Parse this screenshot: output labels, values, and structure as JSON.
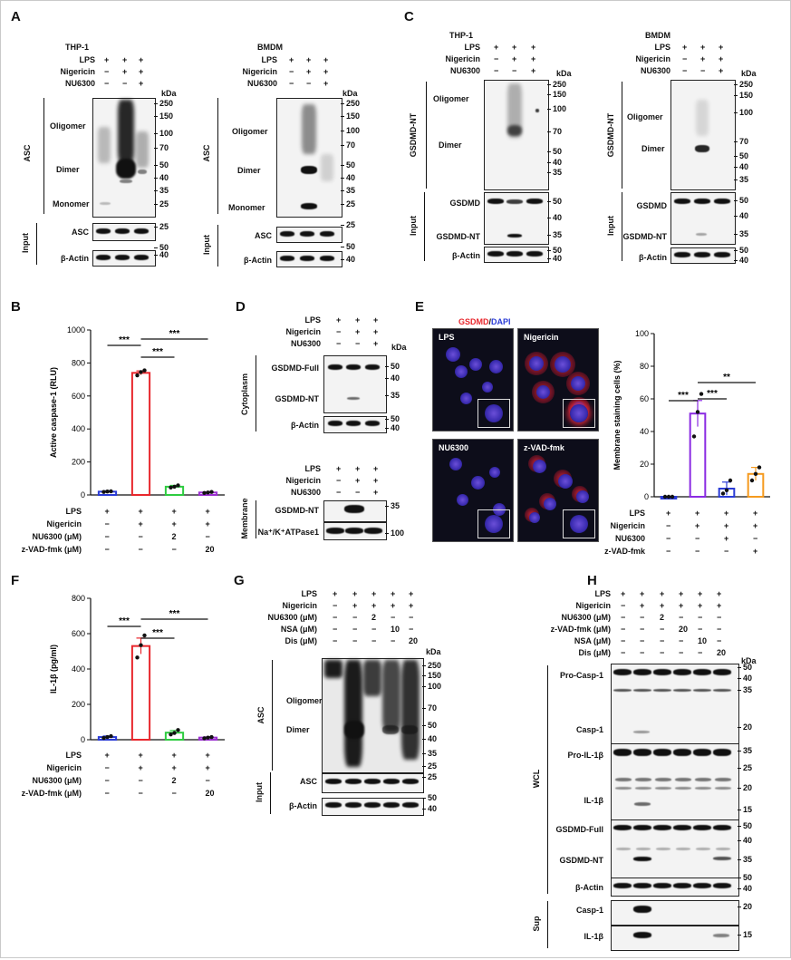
{
  "panels": {
    "A": {
      "letter": "A",
      "left": {
        "cell": "THP-1",
        "rows": [
          "LPS",
          "Nigericin",
          "NU6300"
        ],
        "signs": [
          [
            "+",
            "+",
            "+"
          ],
          [
            "−",
            "+",
            "+"
          ],
          [
            "−",
            "−",
            "+"
          ]
        ],
        "kda": [
          "250",
          "150",
          "100",
          "70",
          "50",
          "40",
          "35",
          "25"
        ],
        "side": "ASC",
        "bands": [
          "Oligomer",
          "Dimer",
          "Monomer"
        ],
        "input": "Input",
        "input_rows": [
          "ASC",
          "β-Actin"
        ],
        "input_kda": [
          "25",
          "50",
          "40"
        ]
      },
      "right": {
        "cell": "BMDM",
        "rows": [
          "LPS",
          "Nigericin",
          "NU6300"
        ],
        "signs": [
          [
            "+",
            "+",
            "+"
          ],
          [
            "−",
            "+",
            "+"
          ],
          [
            "−",
            "−",
            "+"
          ]
        ],
        "kda": [
          "250",
          "150",
          "100",
          "70",
          "50",
          "40",
          "35",
          "25"
        ],
        "side": "ASC",
        "bands": [
          "Oligomer",
          "Dimer",
          "Monomer"
        ],
        "input": "Input",
        "input_rows": [
          "ASC",
          "β-Actin"
        ],
        "input_kda": [
          "25",
          "50",
          "40"
        ]
      },
      "kda_label": "kDa"
    },
    "B": {
      "letter": "B",
      "xrows": [
        "LPS",
        "Nigericin",
        "NU6300 (μM)",
        "z-VAD-fmk (μM)"
      ],
      "xsigns": [
        [
          "+",
          "+",
          "+",
          "+"
        ],
        [
          "−",
          "+",
          "+",
          "+"
        ],
        [
          "−",
          "−",
          "2",
          "−"
        ],
        [
          "−",
          "−",
          "−",
          "20"
        ]
      ],
      "sig": [
        "***",
        "***",
        "***"
      ]
    },
    "C": {
      "letter": "C",
      "left": {
        "cell": "THP-1",
        "rows": [
          "LPS",
          "Nigericin",
          "NU6300"
        ],
        "signs": [
          [
            "+",
            "+",
            "+"
          ],
          [
            "−",
            "+",
            "+"
          ],
          [
            "−",
            "−",
            "+"
          ]
        ],
        "kda": [
          "250",
          "150",
          "100",
          "70",
          "50",
          "40",
          "35"
        ],
        "side": "GSDMD-NT",
        "bands": [
          "Oligomer",
          "Dimer"
        ],
        "input": "Input",
        "input_rows": [
          "GSDMD",
          "GSDMD-NT",
          "β-Actin"
        ],
        "input_kda": [
          "50",
          "40",
          "35",
          "50",
          "40"
        ]
      },
      "right": {
        "cell": "BMDM",
        "rows": [
          "LPS",
          "Nigericin",
          "NU6300"
        ],
        "signs": [
          [
            "+",
            "+",
            "+"
          ],
          [
            "−",
            "+",
            "+"
          ],
          [
            "−",
            "−",
            "+"
          ]
        ],
        "kda": [
          "250",
          "150",
          "100",
          "70",
          "50",
          "40",
          "35"
        ],
        "side": "GSDMD-NT",
        "bands": [
          "Oligomer",
          "Dimer"
        ],
        "input": "Input",
        "input_rows": [
          "GSDMD",
          "GSDMD-NT",
          "β-Actin"
        ],
        "input_kda": [
          "50",
          "40",
          "35",
          "50",
          "40"
        ]
      },
      "kda_label": "kDa"
    },
    "D": {
      "letter": "D",
      "rows": [
        "LPS",
        "Nigericin",
        "NU6300"
      ],
      "signs": [
        [
          "+",
          "+",
          "+"
        ],
        [
          "−",
          "+",
          "+"
        ],
        [
          "−",
          "−",
          "+"
        ]
      ],
      "cyto": "Cytoplasm",
      "cyto_rows": [
        "GSDMD-Full",
        "GSDMD-NT",
        "β-Actin"
      ],
      "cyto_kda": [
        "50",
        "40",
        "35",
        "50",
        "40"
      ],
      "memb": "Membrane",
      "memb_rows": [
        "GSDMD-NT",
        "Na⁺/K⁺ATPase1"
      ],
      "memb_kda": [
        "35",
        "100"
      ],
      "kda_label": "kDa"
    },
    "E": {
      "letter": "E",
      "title_red": "GSDMD",
      "title_sep": "/",
      "title_blue": "DAPI",
      "images": [
        "LPS",
        "Nigericin",
        "NU6300",
        "z-VAD-fmk"
      ],
      "xrows": [
        "LPS",
        "Nigericin",
        "NU6300",
        "z-VAD-fmk"
      ],
      "xsigns": [
        [
          "+",
          "+",
          "+",
          "+"
        ],
        [
          "−",
          "+",
          "+",
          "+"
        ],
        [
          "−",
          "−",
          "+",
          "−"
        ],
        [
          "−",
          "−",
          "−",
          "+"
        ]
      ],
      "sig": [
        "***",
        "***",
        "**"
      ]
    },
    "F": {
      "letter": "F",
      "xrows": [
        "LPS",
        "Nigericin",
        "NU6300 (μM)",
        "z-VAD-fmk (μM)"
      ],
      "xsigns": [
        [
          "+",
          "+",
          "+",
          "+"
        ],
        [
          "−",
          "+",
          "+",
          "+"
        ],
        [
          "−",
          "−",
          "2",
          "−"
        ],
        [
          "−",
          "−",
          "−",
          "20"
        ]
      ],
      "sig": [
        "***",
        "***",
        "***"
      ]
    },
    "G": {
      "letter": "G",
      "rows": [
        "LPS",
        "Nigericin",
        "NU6300 (μM)",
        "NSA (μM)",
        "Dis (μM)"
      ],
      "signs": [
        [
          "+",
          "+",
          "+",
          "+",
          "+"
        ],
        [
          "−",
          "+",
          "+",
          "+",
          "+"
        ],
        [
          "−",
          "−",
          "2",
          "−",
          "−"
        ],
        [
          "−",
          "−",
          "−",
          "10",
          "−"
        ],
        [
          "−",
          "−",
          "−",
          "−",
          "20"
        ]
      ],
      "kda": [
        "250",
        "150",
        "100",
        "70",
        "50",
        "40",
        "35",
        "25"
      ],
      "side": "ASC",
      "bands": [
        "Oligomer",
        "Dimer"
      ],
      "input": "Input",
      "input_rows": [
        "ASC",
        "β-Actin"
      ],
      "input_kda": [
        "25",
        "50",
        "40"
      ],
      "kda_label": "kDa"
    },
    "H": {
      "letter": "H",
      "rows": [
        "LPS",
        "Nigericin",
        "NU6300 (μM)",
        "z-VAD-fmk (μM)",
        "NSA (μM)",
        "Dis (μM)"
      ],
      "signs": [
        [
          "+",
          "+",
          "+",
          "+",
          "+",
          "+"
        ],
        [
          "−",
          "+",
          "+",
          "+",
          "+",
          "+"
        ],
        [
          "−",
          "−",
          "2",
          "−",
          "−",
          "−"
        ],
        [
          "−",
          "−",
          "−",
          "20",
          "−",
          "−"
        ],
        [
          "−",
          "−",
          "−",
          "−",
          "10",
          "−"
        ],
        [
          "−",
          "−",
          "−",
          "−",
          "−",
          "20"
        ]
      ],
      "wcl": "WCL",
      "wcl_rows": [
        "Pro-Casp-1",
        "Casp-1",
        "Pro-IL-1β",
        "IL-1β",
        "GSDMD-Full",
        "GSDMD-NT",
        "β-Actin"
      ],
      "wcl_kda": [
        "50",
        "40",
        "35",
        "20",
        "35",
        "25",
        "20",
        "15",
        "50",
        "40",
        "35",
        "50",
        "40"
      ],
      "sup": "Sup",
      "sup_rows": [
        "Casp-1",
        "IL-1β"
      ],
      "sup_kda": [
        "20",
        "15"
      ],
      "kda_label": "kDa"
    }
  },
  "chart_data": [
    {
      "type": "bar",
      "panel": "B",
      "title": "",
      "ylabel": "Active caspase-1 (RLU)",
      "xlabel": "",
      "ylim": [
        0,
        1000
      ],
      "yticks": [
        0,
        200,
        400,
        600,
        800,
        1000
      ],
      "categories": [
        "1",
        "2",
        "3",
        "4"
      ],
      "values": [
        20,
        740,
        50,
        15
      ],
      "errors": [
        5,
        12,
        8,
        4
      ],
      "points": [
        [
          18,
          21,
          22
        ],
        [
          725,
          745,
          755
        ],
        [
          45,
          50,
          58
        ],
        [
          12,
          15,
          18
        ]
      ],
      "colors": [
        "#2a3bd6",
        "#e8262c",
        "#2ecc40",
        "#9b30d0"
      ]
    },
    {
      "type": "bar",
      "panel": "E",
      "title": "",
      "ylabel": "Membrane staining cells (%)",
      "xlabel": "",
      "ylim": [
        0,
        100
      ],
      "yticks": [
        0,
        20,
        40,
        60,
        80,
        100
      ],
      "categories": [
        "1",
        "2",
        "3",
        "4"
      ],
      "values": [
        0,
        51,
        5,
        14
      ],
      "errors": [
        0,
        8,
        4,
        4
      ],
      "points": [
        [
          0,
          0,
          0
        ],
        [
          37,
          52,
          63
        ],
        [
          2,
          4,
          10
        ],
        [
          10,
          14,
          18
        ]
      ],
      "colors": [
        "#2a3bd6",
        "#8a2be2",
        "#2a3bd6",
        "#f59a1e"
      ]
    },
    {
      "type": "bar",
      "panel": "F",
      "title": "",
      "ylabel": "IL-1β (pg/ml)",
      "xlabel": "",
      "ylim": [
        0,
        800
      ],
      "yticks": [
        0,
        200,
        400,
        600,
        800
      ],
      "categories": [
        "1",
        "2",
        "3",
        "4"
      ],
      "values": [
        15,
        530,
        40,
        12
      ],
      "errors": [
        6,
        45,
        12,
        4
      ],
      "points": [
        [
          10,
          15,
          20
        ],
        [
          465,
          535,
          590
        ],
        [
          30,
          38,
          55
        ],
        [
          8,
          12,
          15
        ]
      ],
      "colors": [
        "#2a3bd6",
        "#e8262c",
        "#2ecc40",
        "#9b30d0"
      ]
    }
  ]
}
